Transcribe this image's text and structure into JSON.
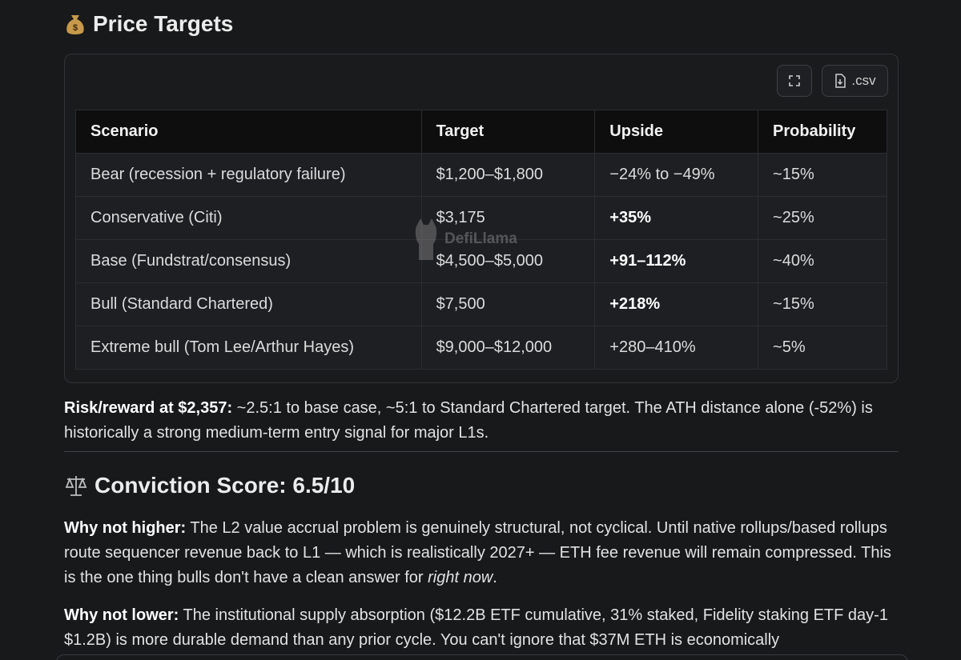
{
  "section1": {
    "title": "Price Targets",
    "buttons": {
      "csv": ".csv"
    },
    "table": {
      "header": [
        "Scenario",
        "Target",
        "Upside",
        "Probability"
      ],
      "rows": [
        [
          "Bear (recession + regulatory failure)",
          "$1,200–$1,800",
          "−24% to −49%",
          "~15%"
        ],
        [
          "Conservative (Citi)",
          "$3,175",
          "+35%",
          "~25%"
        ],
        [
          "Base (Fundstrat/consensus)",
          "$4,500–$5,000",
          "+91–112%",
          "~40%"
        ],
        [
          "Bull (Standard Chartered)",
          "$7,500",
          "+218%",
          "~15%"
        ],
        [
          "Extreme bull (Tom Lee/Arthur Hayes)",
          "$9,000–$12,000",
          "+280–410%",
          "~5%"
        ]
      ]
    },
    "watermark": "DefiLlama",
    "note": {
      "lead": "Risk/reward at $2,357:",
      "text": " ~2.5:1 to base case, ~5:1 to Standard Chartered target. The ATH distance alone (-52%) is historically a strong medium-term entry signal for major L1s."
    }
  },
  "section2": {
    "title": "Conviction Score: 6.5/10",
    "higher": {
      "lead": "Why not higher:",
      "text": " The L2 value accrual problem is genuinely structural, not cyclical. Until native rollups/based rollups route sequencer revenue back to L1 — which is realistically 2027+ — ETH fee revenue will remain compressed. This is the one thing bulls don't have a clean answer for ",
      "italic": "right now",
      "end": "."
    },
    "lower": {
      "lead": "Why not lower:",
      "text": " The institutional supply absorption ($12.2B ETF cumulative, 31% staked, Fidelity staking ETF day-1 $1.2B) is more durable demand than any prior cycle. You can't ignore that $37M ETH is economically"
    }
  }
}
